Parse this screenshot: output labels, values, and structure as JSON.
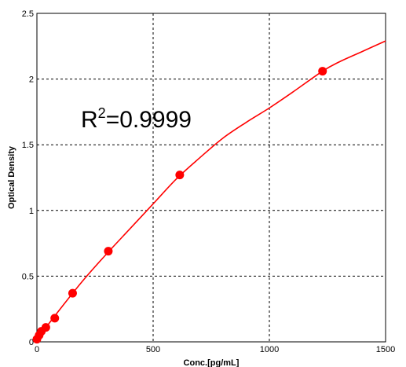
{
  "chart_data": {
    "type": "scatter",
    "title": "",
    "xlabel": "Conc.[pg/mL]",
    "ylabel": "Optical Density",
    "xlim": [
      0,
      1500
    ],
    "ylim": [
      0,
      2.5
    ],
    "x_ticks": [
      0,
      500,
      1000,
      1500
    ],
    "x_tick_labels": [
      "0",
      "500",
      "1000",
      "1500"
    ],
    "y_ticks": [
      0,
      0.5,
      1,
      1.5,
      2,
      2.5
    ],
    "y_tick_labels": [
      "0",
      "0.5",
      "1",
      "1.5",
      "2",
      "2.5"
    ],
    "grid": true,
    "series": [
      {
        "color": "#ff0000",
        "points": [
          {
            "x": 0,
            "y": 0.02
          },
          {
            "x": 9.6,
            "y": 0.05
          },
          {
            "x": 19.2,
            "y": 0.08
          },
          {
            "x": 38.4,
            "y": 0.11
          },
          {
            "x": 76.8,
            "y": 0.18
          },
          {
            "x": 153.6,
            "y": 0.37
          },
          {
            "x": 307.2,
            "y": 0.69
          },
          {
            "x": 614.4,
            "y": 1.27
          },
          {
            "x": 1228.8,
            "y": 2.06
          }
        ],
        "fit_curve": [
          [
            0,
            0.02
          ],
          [
            100,
            0.25
          ],
          [
            200,
            0.47
          ],
          [
            300,
            0.67
          ],
          [
            400,
            0.86
          ],
          [
            500,
            1.05
          ],
          [
            600,
            1.24
          ],
          [
            700,
            1.4
          ],
          [
            800,
            1.55
          ],
          [
            900,
            1.67
          ],
          [
            1000,
            1.78
          ],
          [
            1100,
            1.9
          ],
          [
            1228.8,
            2.06
          ],
          [
            1300,
            2.13
          ],
          [
            1400,
            2.21
          ],
          [
            1500,
            2.29
          ]
        ]
      }
    ],
    "annotation": {
      "base": "R",
      "superscript": "2",
      "text": "=0.9999"
    }
  }
}
